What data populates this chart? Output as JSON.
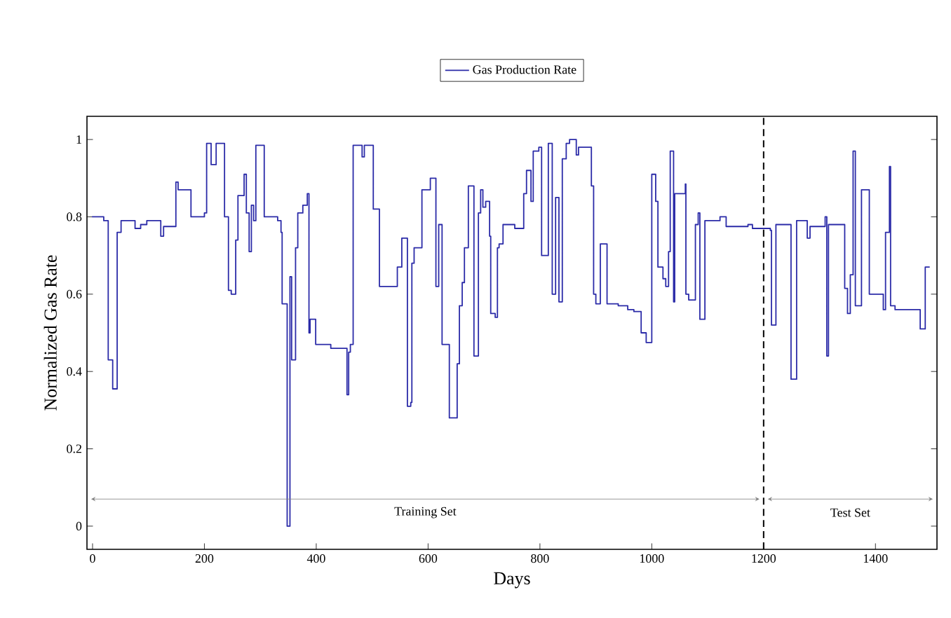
{
  "chart_data": {
    "type": "step",
    "xlabel": "Days",
    "ylabel": "Normalized Gas Rate",
    "xlim": [
      -10,
      1510
    ],
    "ylim": [
      -0.06,
      1.06
    ],
    "xticks": [
      0,
      200,
      400,
      600,
      800,
      1000,
      1200,
      1400
    ],
    "yticks": [
      0,
      0.2,
      0.4,
      0.6,
      0.8,
      1
    ],
    "legend": "top",
    "grid": false,
    "line_style": "solid",
    "marker": "none",
    "ref_lines": [
      {
        "axis": "x",
        "value": 1200,
        "color": "#000000",
        "line_style": "dashed"
      }
    ],
    "annotations": [
      "Training Set",
      "Test Set"
    ],
    "series": [
      {
        "name": "Gas Production Rate",
        "color": "#2b2ba8",
        "x": [
          -1,
          20,
          28,
          36,
          44,
          51,
          76,
          86,
          97,
          122,
          127,
          149,
          153,
          176,
          200,
          204,
          212,
          221,
          236,
          243,
          248,
          256,
          260,
          271,
          275,
          280,
          284,
          288,
          292,
          307,
          331,
          337,
          339,
          348,
          353,
          356,
          363,
          367,
          376,
          384,
          387,
          389,
          399,
          426,
          455,
          458,
          461,
          466,
          482,
          486,
          502,
          513,
          545,
          553,
          563,
          569,
          571,
          575,
          589,
          604,
          614,
          619,
          625,
          638,
          652,
          656,
          661,
          665,
          672,
          682,
          690,
          694,
          698,
          703,
          710,
          712,
          720,
          724,
          727,
          734,
          755,
          771,
          776,
          784,
          788,
          798,
          803,
          815,
          822,
          828,
          834,
          840,
          847,
          853,
          865,
          869,
          892,
          896,
          900,
          908,
          920,
          940,
          957,
          968,
          981,
          990,
          1000,
          1007,
          1011,
          1020,
          1025,
          1030,
          1033,
          1039,
          1041,
          1060,
          1061,
          1066,
          1078,
          1083,
          1086,
          1095,
          1122,
          1133,
          1172,
          1180,
          1212,
          1214,
          1222,
          1249,
          1259,
          1278,
          1283,
          1310,
          1313,
          1316,
          1345,
          1350,
          1355,
          1360,
          1364,
          1375,
          1389,
          1414,
          1418,
          1425,
          1427,
          1435,
          1480,
          1489,
          1497
        ],
        "values": [
          0.8,
          0.79,
          0.43,
          0.355,
          0.76,
          0.79,
          0.77,
          0.78,
          0.79,
          0.75,
          0.775,
          0.89,
          0.87,
          0.8,
          0.81,
          0.99,
          0.935,
          0.99,
          0.8,
          0.61,
          0.6,
          0.74,
          0.855,
          0.91,
          0.81,
          0.71,
          0.83,
          0.79,
          0.985,
          0.8,
          0.79,
          0.76,
          0.575,
          0.0,
          0.645,
          0.43,
          0.72,
          0.81,
          0.83,
          0.86,
          0.5,
          0.535,
          0.47,
          0.46,
          0.34,
          0.45,
          0.47,
          0.985,
          0.955,
          0.985,
          0.82,
          0.62,
          0.67,
          0.745,
          0.31,
          0.32,
          0.68,
          0.72,
          0.87,
          0.9,
          0.62,
          0.78,
          0.47,
          0.28,
          0.42,
          0.57,
          0.63,
          0.72,
          0.88,
          0.44,
          0.81,
          0.87,
          0.825,
          0.84,
          0.75,
          0.55,
          0.54,
          0.72,
          0.73,
          0.78,
          0.77,
          0.86,
          0.92,
          0.84,
          0.97,
          0.98,
          0.7,
          0.99,
          0.6,
          0.85,
          0.58,
          0.95,
          0.99,
          1.0,
          0.96,
          0.98,
          0.88,
          0.6,
          0.575,
          0.73,
          0.575,
          0.57,
          0.56,
          0.555,
          0.5,
          0.475,
          0.91,
          0.84,
          0.67,
          0.64,
          0.62,
          0.71,
          0.97,
          0.58,
          0.86,
          0.885,
          0.6,
          0.585,
          0.78,
          0.81,
          0.535,
          0.79,
          0.8,
          0.775,
          0.78,
          0.77,
          0.765,
          0.52,
          0.78,
          0.38,
          0.79,
          0.745,
          0.775,
          0.8,
          0.44,
          0.78,
          0.615,
          0.55,
          0.65,
          0.97,
          0.57,
          0.87,
          0.6,
          0.56,
          0.76,
          0.93,
          0.57,
          0.56,
          0.51,
          0.67,
          0.67
        ]
      }
    ]
  }
}
